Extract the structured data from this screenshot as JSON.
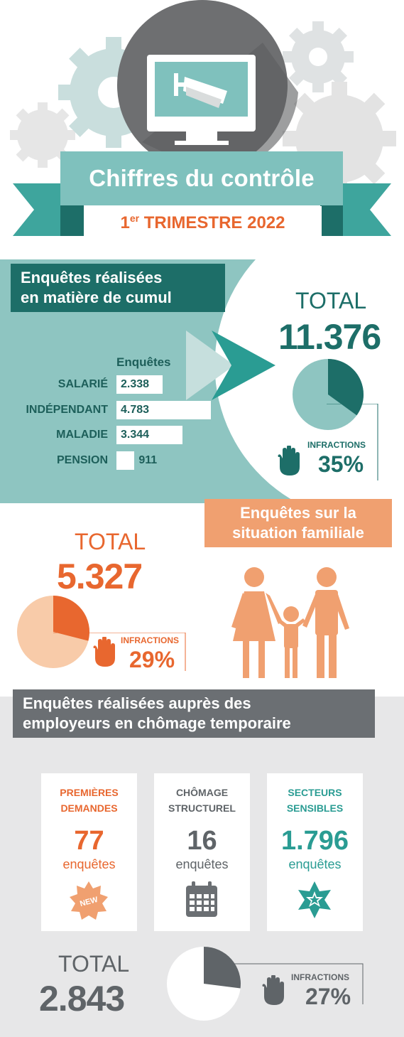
{
  "header": {
    "title": "Chiffres du contrôle",
    "period_prefix": "1",
    "period_sup": "er",
    "period_rest": " TRIMESTRE 2022"
  },
  "cumul": {
    "title_line1": "Enquêtes réalisées",
    "title_line2": "en matière de cumul",
    "column_header": "Enquêtes",
    "total_label": "TOTAL",
    "total_value": "11.376",
    "infractions_label": "INFRACTIONS",
    "infractions_value": "35%"
  },
  "familiale": {
    "title_line1": "Enquêtes sur la",
    "title_line2": "situation familiale",
    "total_label": "TOTAL",
    "total_value": "5.327",
    "infractions_label": "INFRACTIONS",
    "infractions_value": "29%"
  },
  "chomage": {
    "title_line1": "Enquêtes réalisées auprès des",
    "title_line2": "employeurs en chômage temporaire",
    "cards": [
      {
        "title1": "PREMIÈRES",
        "title2": "DEMANDES",
        "value": "77",
        "unit": "enquêtes",
        "icon": "new-badge-icon"
      },
      {
        "title1": "CHÔMAGE",
        "title2": "STRUCTUREL",
        "value": "16",
        "unit": "enquêtes",
        "icon": "calendar-icon"
      },
      {
        "title1": "SECTEURS",
        "title2": "SENSIBLES",
        "value": "1.796",
        "unit": "enquêtes",
        "icon": "star-badge-icon"
      }
    ],
    "new_badge_text": "NEW",
    "total_label": "TOTAL",
    "total_value": "2.843",
    "infractions_label": "INFRACTIONS",
    "infractions_value": "27%"
  },
  "colors": {
    "teal_dark": "#1d6e68",
    "teal_mid": "#2a9c93",
    "teal_light": "#7fc1bd",
    "orange": "#e8672f",
    "orange_light": "#f8cba9",
    "gray_dark": "#5f6468",
    "gray_light": "#e7e7e8"
  },
  "chart_data": [
    {
      "type": "bar",
      "categories": [
        "SALARIÉ",
        "INDÉPENDANT",
        "MALADIE",
        "PENSION"
      ],
      "values": [
        2338,
        4783,
        3344,
        911
      ],
      "value_labels": [
        "2.338",
        "4.783",
        "3.344",
        "911"
      ],
      "xlabel": "",
      "ylabel": "",
      "title": ""
    },
    {
      "type": "pie",
      "categories": [
        "INFRACTIONS",
        ""
      ],
      "values": [
        35,
        65
      ]
    },
    {
      "type": "pie",
      "categories": [
        "INFRACTIONS",
        ""
      ],
      "values": [
        29,
        71
      ]
    },
    {
      "type": "pie",
      "categories": [
        "INFRACTIONS",
        ""
      ],
      "values": [
        27,
        73
      ]
    }
  ]
}
